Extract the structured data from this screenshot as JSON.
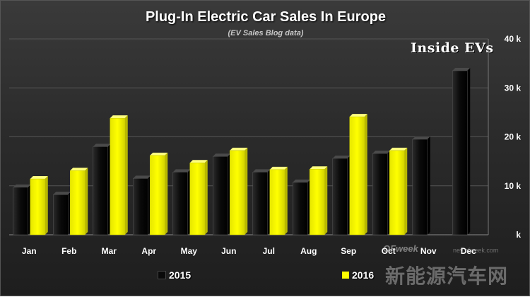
{
  "watermark": {
    "logo_text": "OFweek",
    "domain": "nev.ofweek.com",
    "site_name": "新能源汽车网"
  },
  "brand": "Inside EVs",
  "colors": {
    "series_2015": "#0a0a0a",
    "series_2016": "#ffff00"
  },
  "chart_data": {
    "type": "bar",
    "title": "Plug-In Electric Car Sales In Europe",
    "subtitle": "(EV Sales Blog data)",
    "categories": [
      "Jan",
      "Feb",
      "Mar",
      "Apr",
      "May",
      "Jun",
      "Jul",
      "Aug",
      "Sep",
      "Oct",
      "Nov",
      "Dec"
    ],
    "series": [
      {
        "name": "2015",
        "values": [
          9.7,
          8.2,
          18.0,
          11.5,
          12.8,
          16.0,
          12.8,
          10.7,
          15.6,
          16.6,
          19.5,
          33.5
        ]
      },
      {
        "name": "2016",
        "values": [
          11.4,
          13.1,
          23.8,
          16.2,
          14.7,
          17.2,
          13.3,
          13.4,
          24.1,
          17.2,
          null,
          null
        ]
      }
    ],
    "ylim": [
      0,
      40
    ],
    "yticks": [
      0,
      10,
      20,
      30,
      40
    ],
    "ytick_labels": [
      "k",
      "10 k",
      "20 k",
      "30 k",
      "40 k"
    ],
    "y_axis_side": "right",
    "grid": true,
    "legend_position": "bottom"
  }
}
